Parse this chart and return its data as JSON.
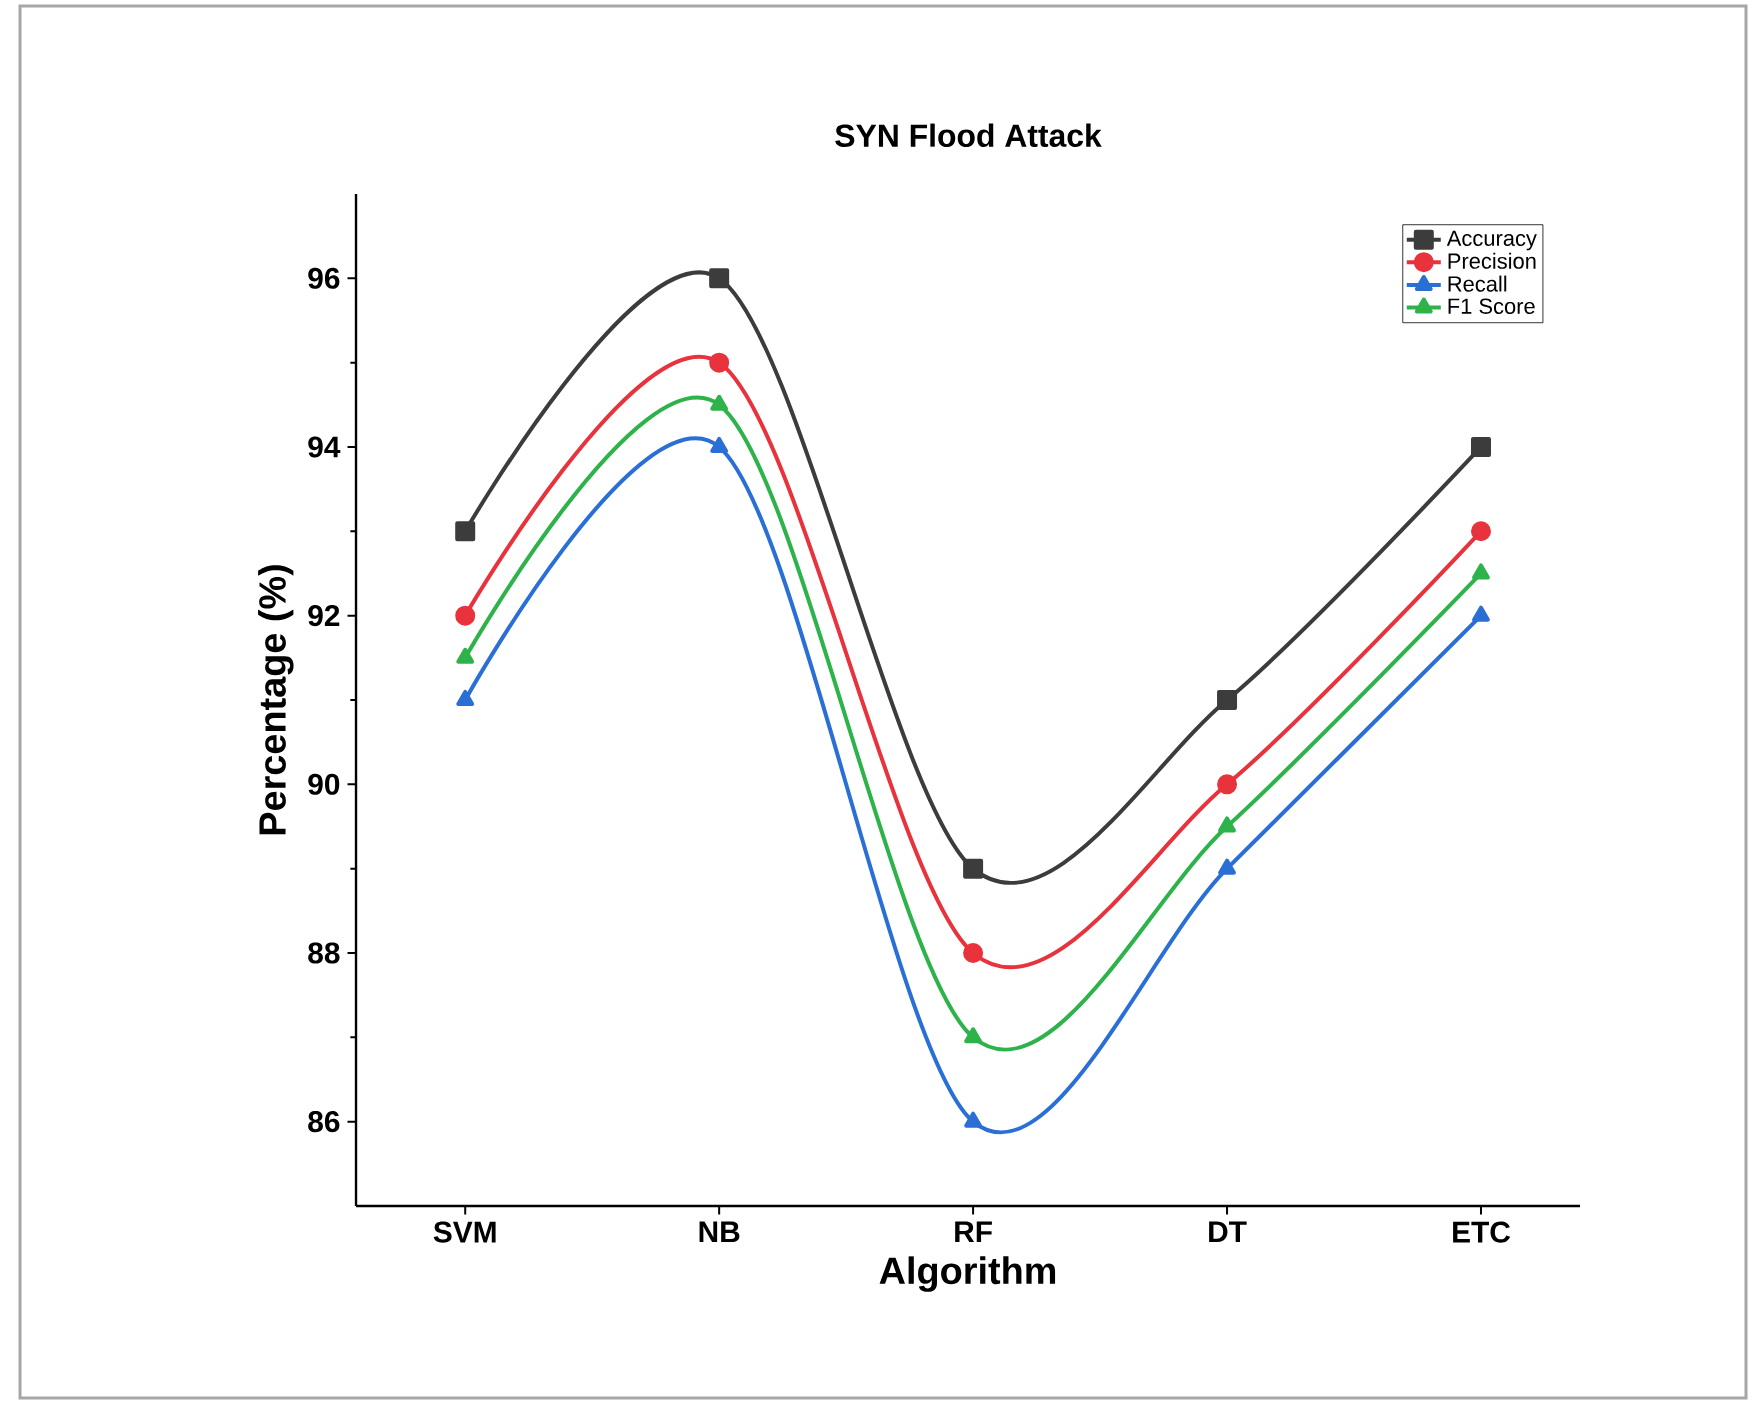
{
  "chart_data": {
    "type": "line",
    "title": "SYN Flood Attack",
    "xlabel": "Algorithm",
    "ylabel": "Percentage (%)",
    "categories": [
      "SVM",
      "NB",
      "RF",
      "DT",
      "ETC"
    ],
    "series": [
      {
        "name": "Accuracy",
        "color": "#3c3c3c",
        "marker": "square",
        "values": [
          93,
          96,
          89,
          91,
          94
        ]
      },
      {
        "name": "Precision",
        "color": "#e8323c",
        "marker": "circle",
        "values": [
          92,
          95,
          88,
          90,
          93
        ]
      },
      {
        "name": "Recall",
        "color": "#2a6fd6",
        "marker": "triangle",
        "values": [
          91,
          94,
          86,
          89,
          92
        ]
      },
      {
        "name": "F1 Score",
        "color": "#2db34a",
        "marker": "triangle",
        "values": [
          91.5,
          94.5,
          87,
          89.5,
          92.5
        ]
      }
    ],
    "ylim": [
      85,
      97
    ],
    "yticks": [
      86,
      88,
      90,
      92,
      94,
      96
    ],
    "legend": "top right",
    "grid": false,
    "line_style": "solid"
  }
}
